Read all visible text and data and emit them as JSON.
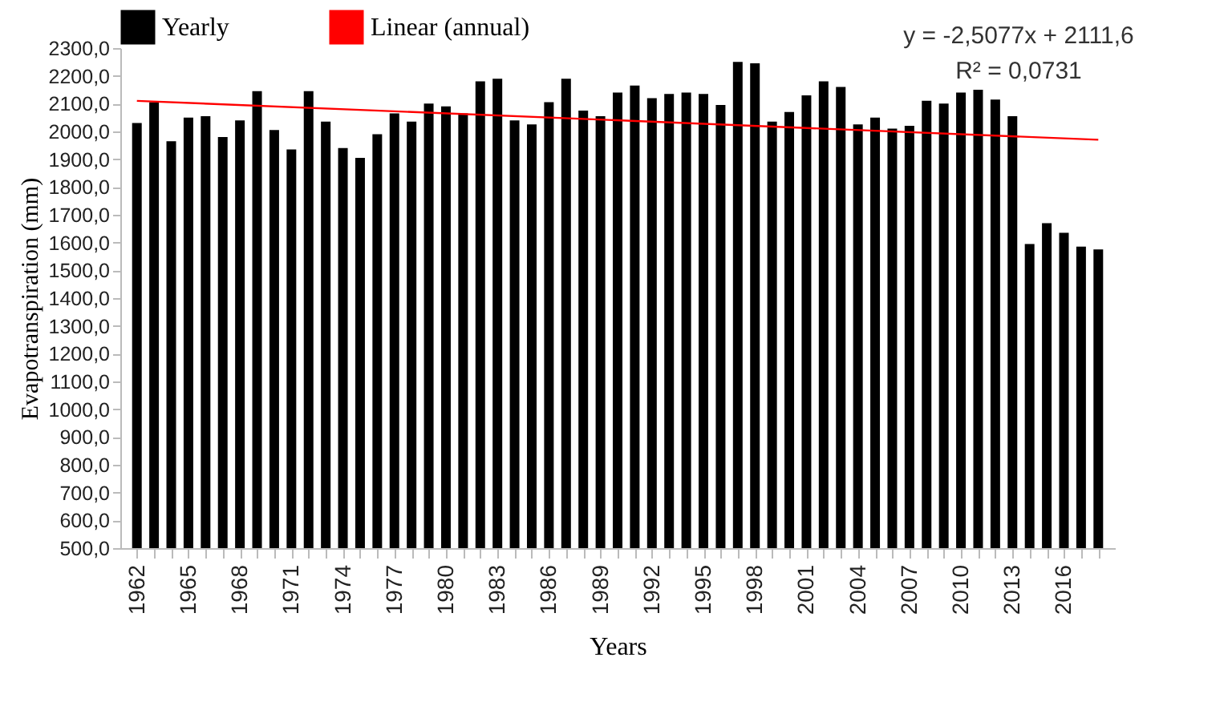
{
  "chart_data": {
    "type": "bar",
    "xlabel": "Years",
    "ylabel": "Evapotranspiration (mm)",
    "annotations": [
      "y = -2,5077x + 2111,6",
      "R² = 0,0731"
    ],
    "x": [
      1962,
      1963,
      1964,
      1965,
      1966,
      1967,
      1968,
      1969,
      1970,
      1971,
      1972,
      1973,
      1974,
      1975,
      1976,
      1977,
      1978,
      1979,
      1980,
      1981,
      1982,
      1983,
      1984,
      1985,
      1986,
      1987,
      1988,
      1989,
      1990,
      1991,
      1992,
      1993,
      1994,
      1995,
      1996,
      1997,
      1998,
      1999,
      2000,
      2001,
      2002,
      2003,
      2004,
      2005,
      2006,
      2007,
      2008,
      2009,
      2010,
      2011,
      2012,
      2013,
      2014,
      2015,
      2016,
      2017,
      2018
    ],
    "series": [
      {
        "name": "Yearly",
        "color": "#000000",
        "values": [
          2030,
          2105,
          1965,
          2050,
          2055,
          1980,
          2040,
          2145,
          2005,
          1935,
          2145,
          2035,
          1940,
          1905,
          1990,
          2065,
          2035,
          2100,
          2090,
          2065,
          2180,
          2190,
          2040,
          2025,
          2105,
          2190,
          2075,
          2055,
          2140,
          2165,
          2120,
          2135,
          2140,
          2135,
          2095,
          2250,
          2245,
          2035,
          2070,
          2130,
          2180,
          2160,
          2025,
          2050,
          2010,
          2020,
          2110,
          2100,
          2140,
          2150,
          2115,
          2055,
          1595,
          1670,
          1635,
          1585,
          1575
        ]
      },
      {
        "name": "Linear (annual)",
        "type": "line",
        "color": "#ff0000",
        "x": [
          1962,
          2018
        ],
        "values": [
          2110,
          1970
        ]
      }
    ],
    "xlim": [
      1961.5,
      2018.5
    ],
    "xticks": [
      1962,
      {
        "value": 1963,
        "label": null
      },
      {
        "value": 1964,
        "label": null
      },
      1965,
      {
        "value": 1966,
        "label": null
      },
      {
        "value": 1967,
        "label": null
      },
      1968,
      {
        "value": 1969,
        "label": null
      },
      {
        "value": 1970,
        "label": null
      },
      1971,
      {
        "value": 1972,
        "label": null
      },
      {
        "value": 1973,
        "label": null
      },
      1974,
      {
        "value": 1975,
        "label": null
      },
      {
        "value": 1976,
        "label": null
      },
      1977,
      {
        "value": 1978,
        "label": null
      },
      {
        "value": 1979,
        "label": null
      },
      1980,
      {
        "value": 1981,
        "label": null
      },
      {
        "value": 1982,
        "label": null
      },
      1983,
      {
        "value": 1984,
        "label": null
      },
      {
        "value": 1985,
        "label": null
      },
      1986,
      {
        "value": 1987,
        "label": null
      },
      {
        "value": 1988,
        "label": null
      },
      1989,
      {
        "value": 1990,
        "label": null
      },
      {
        "value": 1991,
        "label": null
      },
      1992,
      {
        "value": 1993,
        "label": null
      },
      {
        "value": 1994,
        "label": null
      },
      1995,
      {
        "value": 1996,
        "label": null
      },
      {
        "value": 1997,
        "label": null
      },
      1998,
      {
        "value": 1999,
        "label": null
      },
      {
        "value": 2000,
        "label": null
      },
      2001,
      {
        "value": 2002,
        "label": null
      },
      {
        "value": 2003,
        "label": null
      },
      2004,
      {
        "value": 2005,
        "label": null
      },
      {
        "value": 2006,
        "label": null
      },
      2007,
      {
        "value": 2008,
        "label": null
      },
      {
        "value": 2009,
        "label": null
      },
      2010,
      {
        "value": 2011,
        "label": null
      },
      {
        "value": 2012,
        "label": null
      },
      2013,
      {
        "value": 2014,
        "label": null
      },
      {
        "value": 2015,
        "label": null
      },
      2016,
      {
        "value": 2017,
        "label": null
      },
      {
        "value": 2018,
        "label": null
      }
    ],
    "ylim": [
      500,
      2300
    ],
    "yticks": [
      {
        "value": 500,
        "label": "500,0"
      },
      {
        "value": 600,
        "label": "600,0"
      },
      {
        "value": 700,
        "label": "700,0"
      },
      {
        "value": 800,
        "label": "800,0"
      },
      {
        "value": 900,
        "label": "900,0"
      },
      {
        "value": 1000,
        "label": "1000,0"
      },
      {
        "value": 1100,
        "label": "1100,0"
      },
      {
        "value": 1200,
        "label": "1200,0"
      },
      {
        "value": 1300,
        "label": "1300,0"
      },
      {
        "value": 1400,
        "label": "1400,0"
      },
      {
        "value": 1500,
        "label": "1500,0"
      },
      {
        "value": 1600,
        "label": "1600,0"
      },
      {
        "value": 1700,
        "label": "1700,0"
      },
      {
        "value": 1800,
        "label": "1800,0"
      },
      {
        "value": 1900,
        "label": "1900,0"
      },
      {
        "value": 2000,
        "label": "2000,0"
      },
      {
        "value": 2100,
        "label": "2100,0"
      },
      {
        "value": 2200,
        "label": "2200,0"
      },
      {
        "value": 2300,
        "label": "2300,0"
      }
    ],
    "grid": false,
    "legend": "top"
  }
}
